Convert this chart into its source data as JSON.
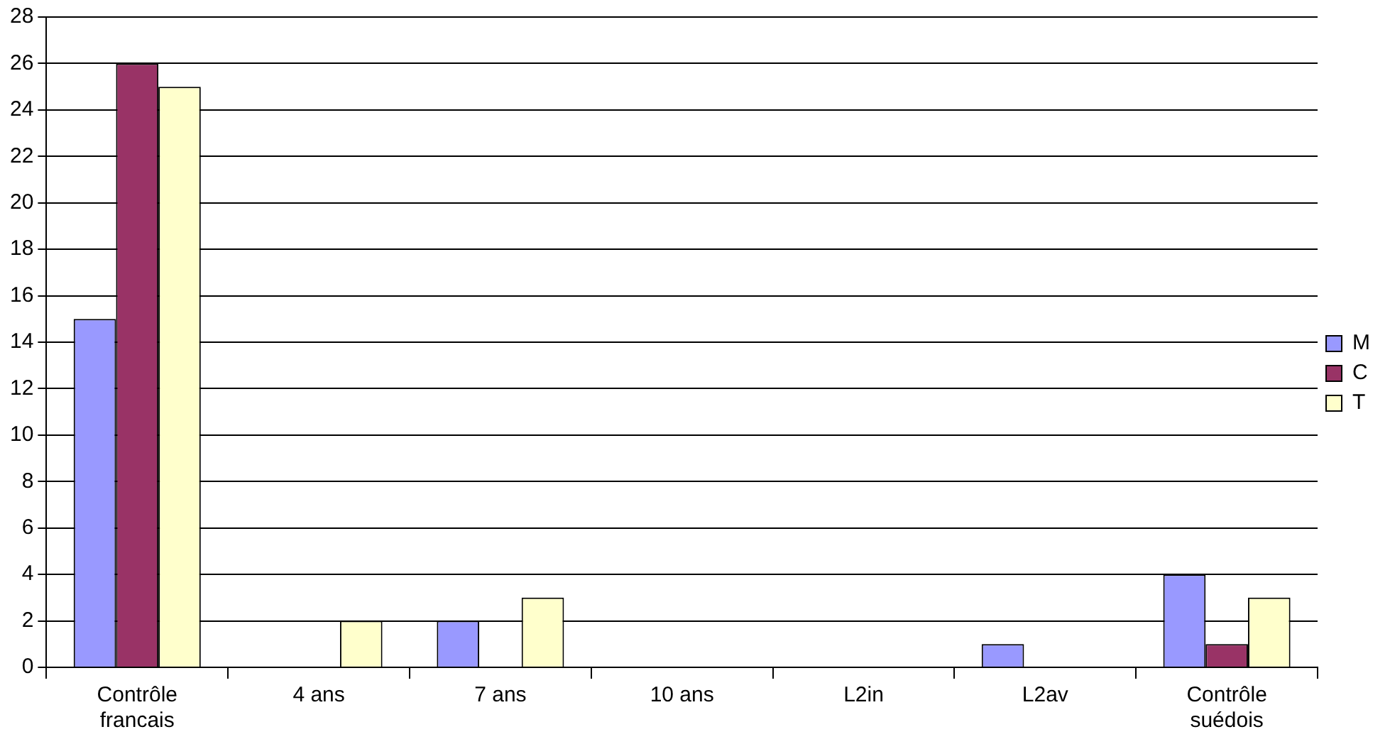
{
  "chart_data": {
    "type": "bar",
    "categories": [
      "Contrôle francais",
      "4 ans",
      "7 ans",
      "10 ans",
      "L2in",
      "L2av",
      "Contrôle suédois"
    ],
    "series": [
      {
        "name": "M",
        "color": "#9999ff",
        "values": [
          15,
          0,
          2,
          0,
          0,
          1,
          4
        ]
      },
      {
        "name": "C",
        "color": "#993366",
        "values": [
          26,
          0,
          0,
          0,
          0,
          0,
          1
        ]
      },
      {
        "name": "T",
        "color": "#ffffcc",
        "values": [
          25,
          2,
          3,
          0,
          0,
          0,
          3
        ]
      }
    ],
    "ylim": [
      0,
      28
    ],
    "yticks": [
      0,
      2,
      4,
      6,
      8,
      10,
      12,
      14,
      16,
      18,
      20,
      22,
      24,
      26,
      28
    ],
    "grid": "y",
    "legend": "right"
  }
}
